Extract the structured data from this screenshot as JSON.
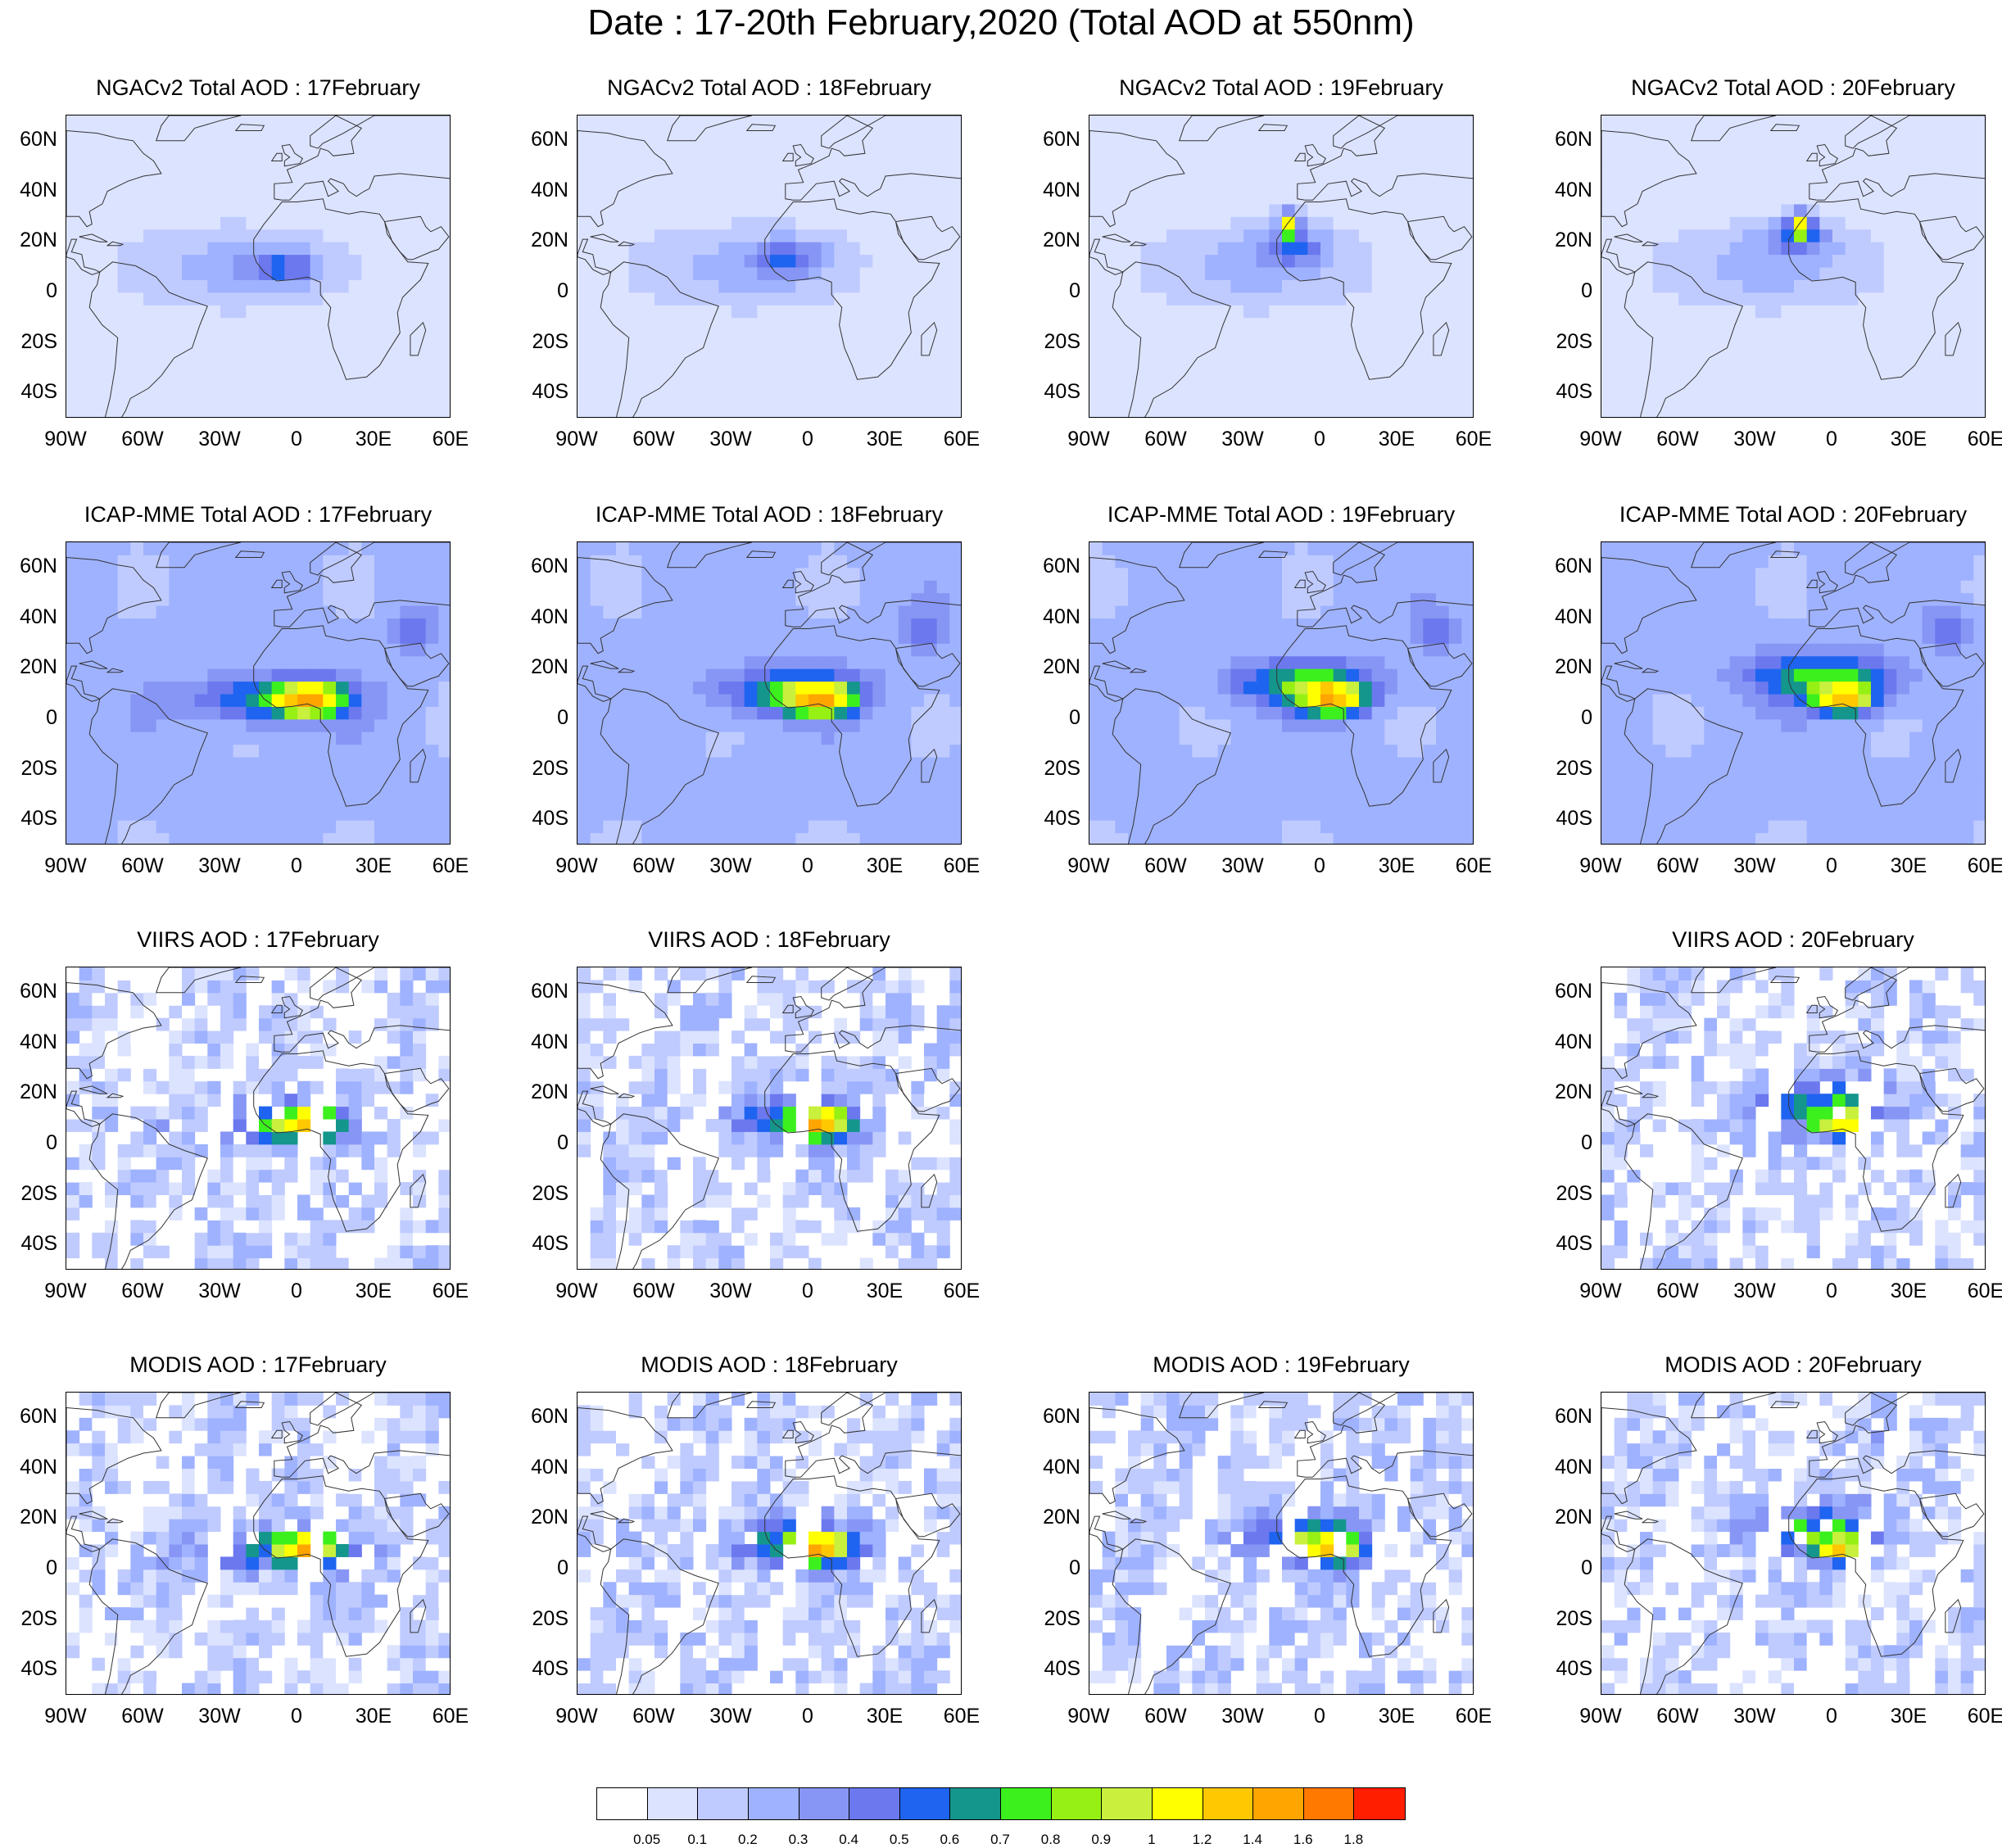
{
  "title": "Date : 17-20th February,2020 (Total AOD at 550nm)",
  "lat_labels": [
    "60N",
    "40N",
    "20N",
    "0",
    "20S",
    "40S"
  ],
  "lat_values": [
    60,
    40,
    20,
    0,
    -20,
    -40
  ],
  "lon_labels": [
    "90W",
    "60W",
    "30W",
    "0",
    "30E",
    "60E"
  ],
  "lon_values": [
    -90,
    -60,
    -30,
    0,
    30,
    60
  ],
  "map_extent": {
    "lon": [
      -90,
      60
    ],
    "lat": [
      -50,
      70
    ]
  },
  "panels": [
    {
      "title": "NGACv2 Total AOD : 17February",
      "row": 0,
      "col": 0,
      "kind": "model"
    },
    {
      "title": "NGACv2 Total AOD : 18February",
      "row": 0,
      "col": 1,
      "kind": "model"
    },
    {
      "title": "NGACv2 Total AOD : 19February",
      "row": 0,
      "col": 2,
      "kind": "model"
    },
    {
      "title": "NGACv2 Total AOD : 20February",
      "row": 0,
      "col": 3,
      "kind": "model"
    },
    {
      "title": "ICAP-MME Total AOD : 17February",
      "row": 1,
      "col": 0,
      "kind": "ens"
    },
    {
      "title": "ICAP-MME Total AOD : 18February",
      "row": 1,
      "col": 1,
      "kind": "ens"
    },
    {
      "title": "ICAP-MME Total AOD : 19February",
      "row": 1,
      "col": 2,
      "kind": "ens"
    },
    {
      "title": "ICAP-MME Total AOD : 20February",
      "row": 1,
      "col": 3,
      "kind": "ens"
    },
    {
      "title": "VIIRS AOD : 17February",
      "row": 2,
      "col": 0,
      "kind": "sat"
    },
    {
      "title": "VIIRS AOD : 18February",
      "row": 2,
      "col": 1,
      "kind": "sat"
    },
    {
      "title": "VIIRS AOD : 20February",
      "row": 2,
      "col": 3,
      "kind": "sat"
    },
    {
      "title": "MODIS AOD : 17February",
      "row": 3,
      "col": 0,
      "kind": "sat"
    },
    {
      "title": "MODIS AOD : 18February",
      "row": 3,
      "col": 1,
      "kind": "sat"
    },
    {
      "title": "MODIS AOD : 19February",
      "row": 3,
      "col": 2,
      "kind": "sat"
    },
    {
      "title": "MODIS AOD : 20February",
      "row": 3,
      "col": 3,
      "kind": "sat"
    }
  ],
  "colorbar": {
    "labels": [
      "0.05",
      "0.1",
      "0.2",
      "0.3",
      "0.4",
      "0.5",
      "0.6",
      "0.7",
      "0.8",
      "0.9",
      "1",
      "1.2",
      "1.4",
      "1.6",
      "1.8"
    ],
    "colors": [
      "#ffffff",
      "#dce3ff",
      "#bfcbff",
      "#9fb2ff",
      "#8796f5",
      "#6b78ee",
      "#1e64f0",
      "#14968c",
      "#3cf01e",
      "#96f014",
      "#c8f03c",
      "#ffff00",
      "#ffc800",
      "#ffa500",
      "#ff7800",
      "#ff1e00"
    ]
  }
}
